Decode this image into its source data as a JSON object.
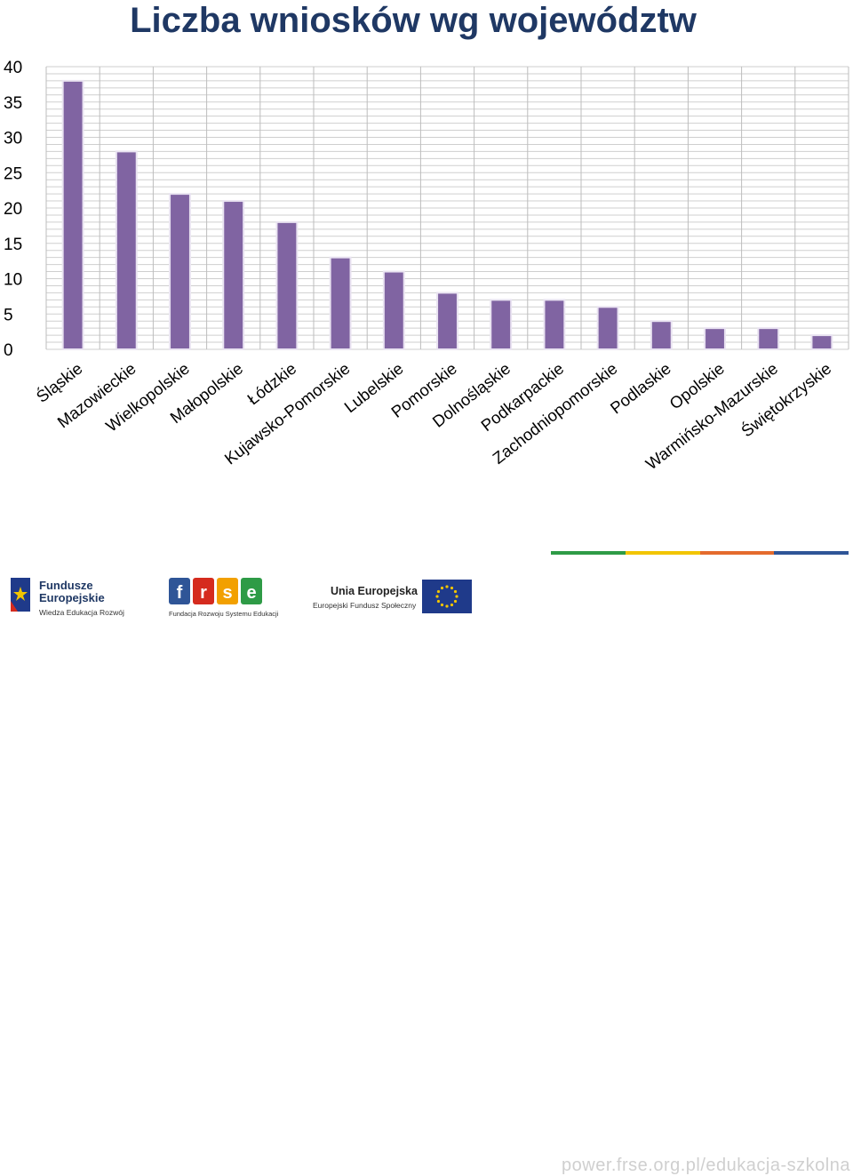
{
  "chart_data": {
    "type": "bar",
    "title": "Liczba wniosków wg województw",
    "categories": [
      "Śląskie",
      "Mazowieckie",
      "Wielkopolskie",
      "Małopolskie",
      "Łódzkie",
      "Kujawsko-Pomorskie",
      "Lubelskie",
      "Pomorskie",
      "Dolnośląskie",
      "Podkarpackie",
      "Zachodniopomorskie",
      "Podlaskie",
      "Opolskie",
      "Warmińsko-Mazurskie",
      "Świętokrzyskie"
    ],
    "values": [
      38,
      28,
      22,
      21,
      18,
      13,
      11,
      8,
      7,
      7,
      6,
      4,
      3,
      3,
      2
    ],
    "yticks": [
      "0",
      "5",
      "10",
      "15",
      "20",
      "25",
      "30",
      "35",
      "40"
    ],
    "ylim": [
      0,
      40
    ],
    "grid": true,
    "bar_color": "#8064a2",
    "xlabel": "",
    "ylabel": ""
  },
  "footer": {
    "logo1_line1": "Fundusze",
    "logo1_line2": "Europejskie",
    "logo1_line3": "Wiedza Edukacja Rozwój",
    "logo2_text": "frse",
    "logo2_sub": "Fundacja Rozwoju Systemu Edukacji",
    "logo3_line1": "Unia Europejska",
    "logo3_line2": "Europejski Fundusz Społeczny",
    "url": "power.frse.org.pl/edukacja-szkolna",
    "stripe_colors": [
      "#2e9b46",
      "#f2c500",
      "#e46b2d",
      "#2f5597"
    ]
  }
}
